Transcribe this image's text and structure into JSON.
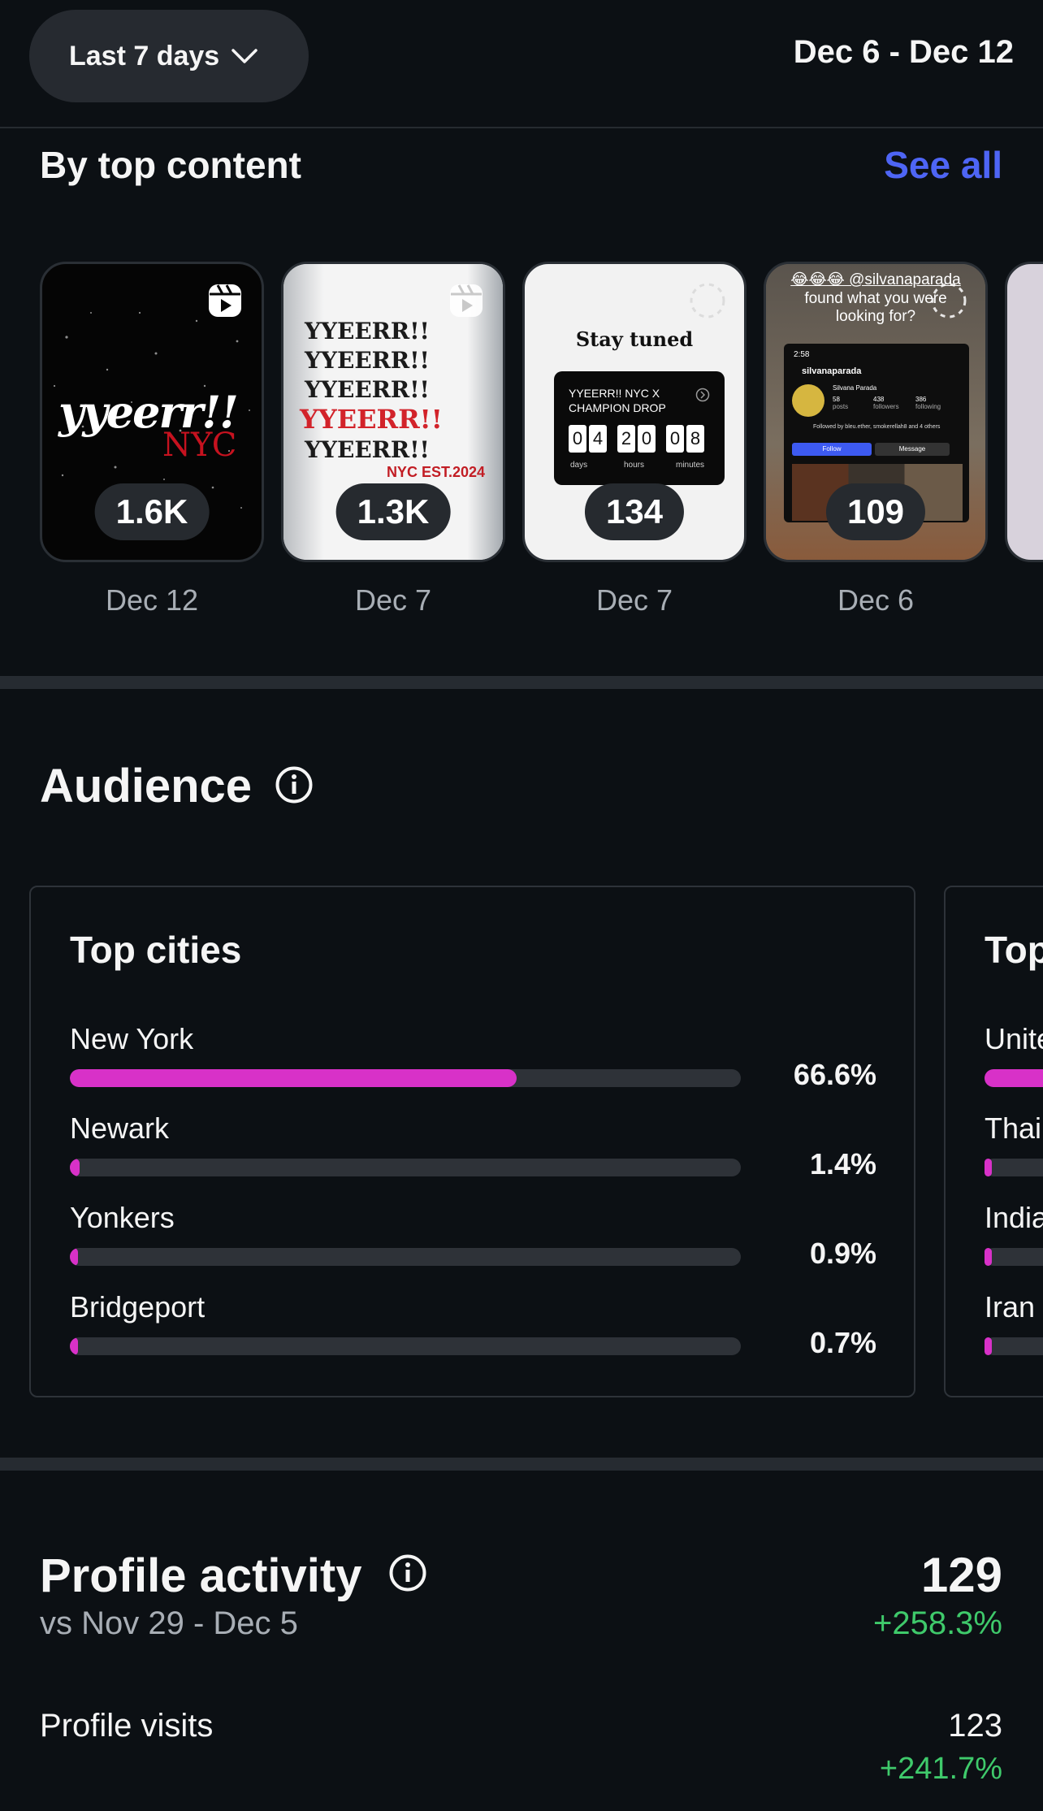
{
  "header": {
    "range_label": "Last 7 days",
    "date_range": "Dec 6 - Dec 12"
  },
  "top_content": {
    "title": "By top content",
    "see_all": "See all",
    "items": [
      {
        "count": "1.6K",
        "date": "Dec 12",
        "thumb_text": "yyeerr!!",
        "thumb_sub": "NYC"
      },
      {
        "count": "1.3K",
        "date": "Dec 7",
        "thumb_lines": [
          "YYEERR!!",
          "YYEERR!!",
          "YYEERR!!",
          "YYEERR!!",
          "YYEERR!!"
        ],
        "thumb_sub": "NYC EST.2024"
      },
      {
        "count": "134",
        "date": "Dec 7",
        "heading": "Stay tuned",
        "box_title": "YYEERR!! NYC X CHAMPION DROP",
        "digits": [
          "0",
          "4",
          "2",
          "0",
          "0",
          "8"
        ],
        "unit_labels": [
          "days",
          "hours",
          "minutes"
        ]
      },
      {
        "count": "109",
        "date": "Dec 6",
        "caption_line1": "😂😂😂 @silvanaparada",
        "caption_line2": "found what you were",
        "caption_line3": "looking for?",
        "time": "2:58",
        "username": "silvanaparada",
        "name": "Silvana Parada",
        "stats": [
          {
            "value": "58",
            "label": "posts"
          },
          {
            "value": "438",
            "label": "followers"
          },
          {
            "value": "386",
            "label": "following"
          }
        ],
        "followed_by": "Followed by bleu.ether, smokerellah8 and 4 others",
        "follow": "Follow",
        "message": "Message"
      }
    ]
  },
  "audience": {
    "title": "Audience",
    "top_cities": {
      "title": "Top cities",
      "rows": [
        {
          "name": "New York",
          "pct_label": "66.6%",
          "pct": 66.6
        },
        {
          "name": "Newark",
          "pct_label": "1.4%",
          "pct": 1.4
        },
        {
          "name": "Yonkers",
          "pct_label": "0.9%",
          "pct": 0.9
        },
        {
          "name": "Bridgeport",
          "pct_label": "0.7%",
          "pct": 0.7
        }
      ]
    },
    "top_countries": {
      "title": "Top",
      "rows": [
        "Unite",
        "Thai",
        "India",
        "Iran"
      ]
    }
  },
  "profile_activity": {
    "title": "Profile activity",
    "comparison": "vs Nov 29 - Dec 5",
    "total": "129",
    "total_change": "+258.3%",
    "visits_label": "Profile visits",
    "visits_value": "123",
    "visits_change": "+241.7%"
  },
  "colors": {
    "background": "#0c1014",
    "accent_link": "#4e65f5",
    "bar_fill": "#d831c8",
    "positive": "#3fca6b"
  }
}
